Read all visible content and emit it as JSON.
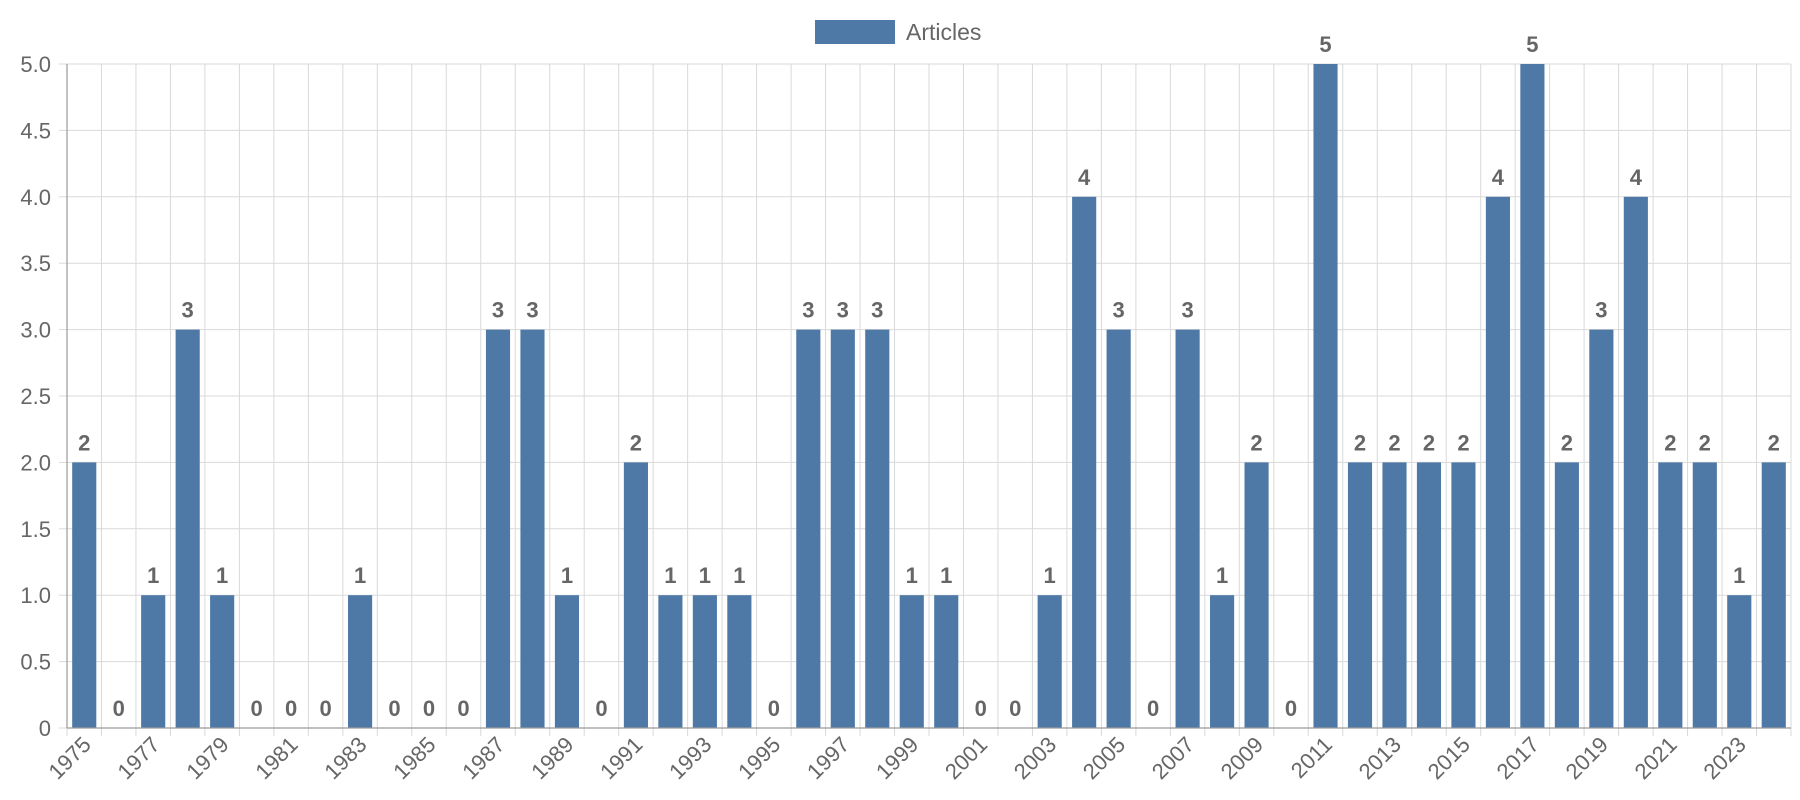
{
  "chart_data": {
    "type": "bar",
    "categories": [
      "1975",
      "1976",
      "1977",
      "1978",
      "1979",
      "1980",
      "1981",
      "1982",
      "1983",
      "1984",
      "1985",
      "1986",
      "1987",
      "1988",
      "1989",
      "1990",
      "1991",
      "1992",
      "1993",
      "1994",
      "1995",
      "1996",
      "1997",
      "1998",
      "1999",
      "2000",
      "2001",
      "2002",
      "2003",
      "2004",
      "2005",
      "2006",
      "2007",
      "2008",
      "2009",
      "2010",
      "2011",
      "2012",
      "2013",
      "2014",
      "2015",
      "2016",
      "2017",
      "2018",
      "2019",
      "2020",
      "2021",
      "2022",
      "2023",
      "2024"
    ],
    "x_tick_labels": [
      "1975",
      "1977",
      "1979",
      "1981",
      "1983",
      "1985",
      "1987",
      "1989",
      "1991",
      "1993",
      "1995",
      "1997",
      "1999",
      "2001",
      "2003",
      "2005",
      "2007",
      "2009",
      "2011",
      "2013",
      "2015",
      "2017",
      "2019",
      "2021",
      "2023"
    ],
    "series": [
      {
        "name": "Articles",
        "color": "#4e79a7",
        "values": [
          2,
          0,
          1,
          3,
          1,
          0,
          0,
          0,
          1,
          0,
          0,
          0,
          3,
          3,
          1,
          0,
          2,
          1,
          1,
          1,
          0,
          3,
          3,
          3,
          1,
          1,
          0,
          0,
          1,
          4,
          3,
          0,
          3,
          1,
          2,
          0,
          5,
          2,
          2,
          2,
          2,
          4,
          5,
          2,
          3,
          4,
          2,
          2,
          1,
          2
        ]
      }
    ],
    "ylim": [
      0,
      5
    ],
    "y_ticks": [
      "0",
      "0.5",
      "1.0",
      "1.5",
      "2.0",
      "2.5",
      "3.0",
      "3.5",
      "4.0",
      "4.5",
      "5.0"
    ],
    "grid": true,
    "legend_position": "top-center",
    "title": "",
    "xlabel": "",
    "ylabel": ""
  }
}
